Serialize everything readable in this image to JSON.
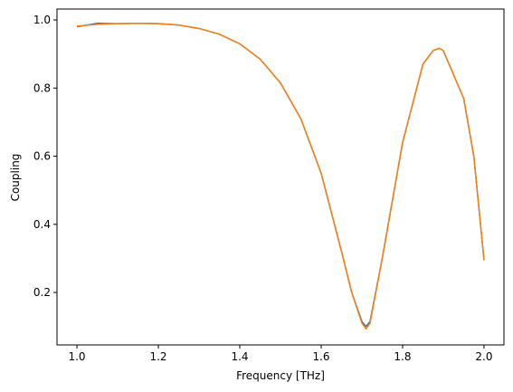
{
  "chart_data": {
    "type": "line",
    "x_label": "Frequency [THz]",
    "y_label": "Coupling",
    "x": [
      1.0,
      1.05,
      1.1,
      1.15,
      1.2,
      1.25,
      1.3,
      1.35,
      1.4,
      1.45,
      1.5,
      1.55,
      1.6,
      1.65,
      1.675,
      1.7,
      1.71,
      1.72,
      1.75,
      1.8,
      1.85,
      1.875,
      1.89,
      1.9,
      1.95,
      1.975,
      2.0
    ],
    "series": [
      {
        "color": "#1f77b4",
        "values": [
          0.98,
          0.99,
          0.989,
          0.99,
          0.989,
          0.985,
          0.975,
          0.958,
          0.93,
          0.885,
          0.815,
          0.71,
          0.55,
          0.32,
          0.2,
          0.115,
          0.1,
          0.115,
          0.3,
          0.64,
          0.87,
          0.91,
          0.917,
          0.91,
          0.77,
          0.6,
          0.295
        ]
      },
      {
        "color": "#ff7f0e",
        "values": [
          0.982,
          0.987,
          0.989,
          0.99,
          0.989,
          0.985,
          0.975,
          0.958,
          0.93,
          0.885,
          0.815,
          0.71,
          0.55,
          0.32,
          0.2,
          0.11,
          0.093,
          0.11,
          0.3,
          0.64,
          0.87,
          0.91,
          0.917,
          0.91,
          0.77,
          0.6,
          0.295
        ]
      }
    ],
    "xlim": [
      0.951,
      2.049
    ],
    "ylim": [
      0.046,
      1.032
    ],
    "xticks": [
      {
        "value": 1,
        "label": "1.0"
      },
      1.2,
      1.4,
      1.6,
      1.8,
      {
        "value": 2,
        "label": "2.0"
      }
    ],
    "yticks": [
      0.2,
      0.4,
      0.6,
      0.8,
      {
        "value": 1,
        "label": "1.0"
      }
    ],
    "grid": false
  }
}
